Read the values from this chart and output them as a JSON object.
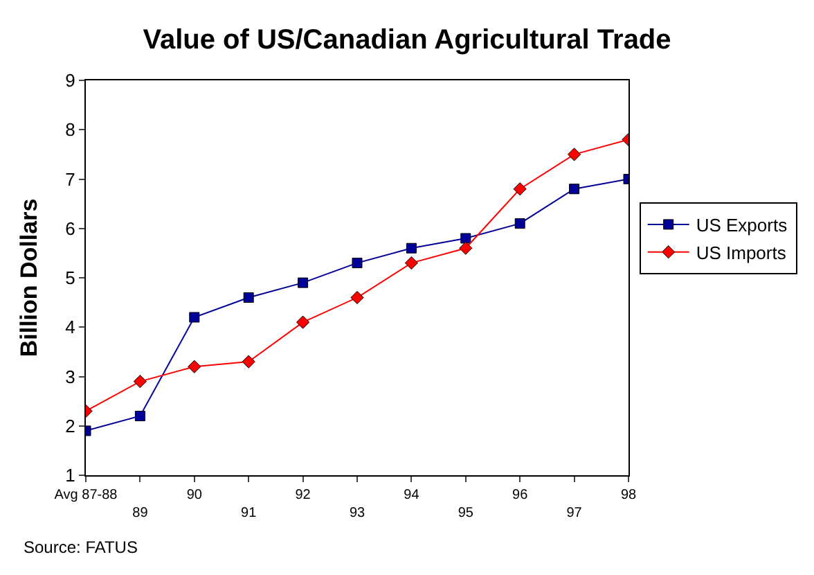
{
  "chart_data": {
    "type": "line",
    "title": "Value of US/Canadian Agricultural Trade",
    "ylabel": "Billion Dollars",
    "categories": [
      "Avg 87-88",
      "89",
      "90",
      "91",
      "92",
      "93",
      "94",
      "95",
      "96",
      "97",
      "98"
    ],
    "series": [
      {
        "name": "US Exports",
        "color": "#000099",
        "marker": "square",
        "values": [
          1.9,
          2.2,
          4.2,
          4.6,
          4.9,
          5.3,
          5.6,
          5.8,
          6.1,
          6.8,
          7.0
        ]
      },
      {
        "name": "US Imports",
        "color": "#ff0000",
        "marker": "diamond",
        "values": [
          2.3,
          2.9,
          3.2,
          3.3,
          4.1,
          4.6,
          5.3,
          5.6,
          6.8,
          7.5,
          7.8
        ]
      }
    ],
    "ylim": [
      1,
      9
    ],
    "yticks": [
      1,
      2,
      3,
      4,
      5,
      6,
      7,
      8,
      9
    ],
    "legend": "right",
    "annotations": [
      "Source: FATUS"
    ]
  }
}
